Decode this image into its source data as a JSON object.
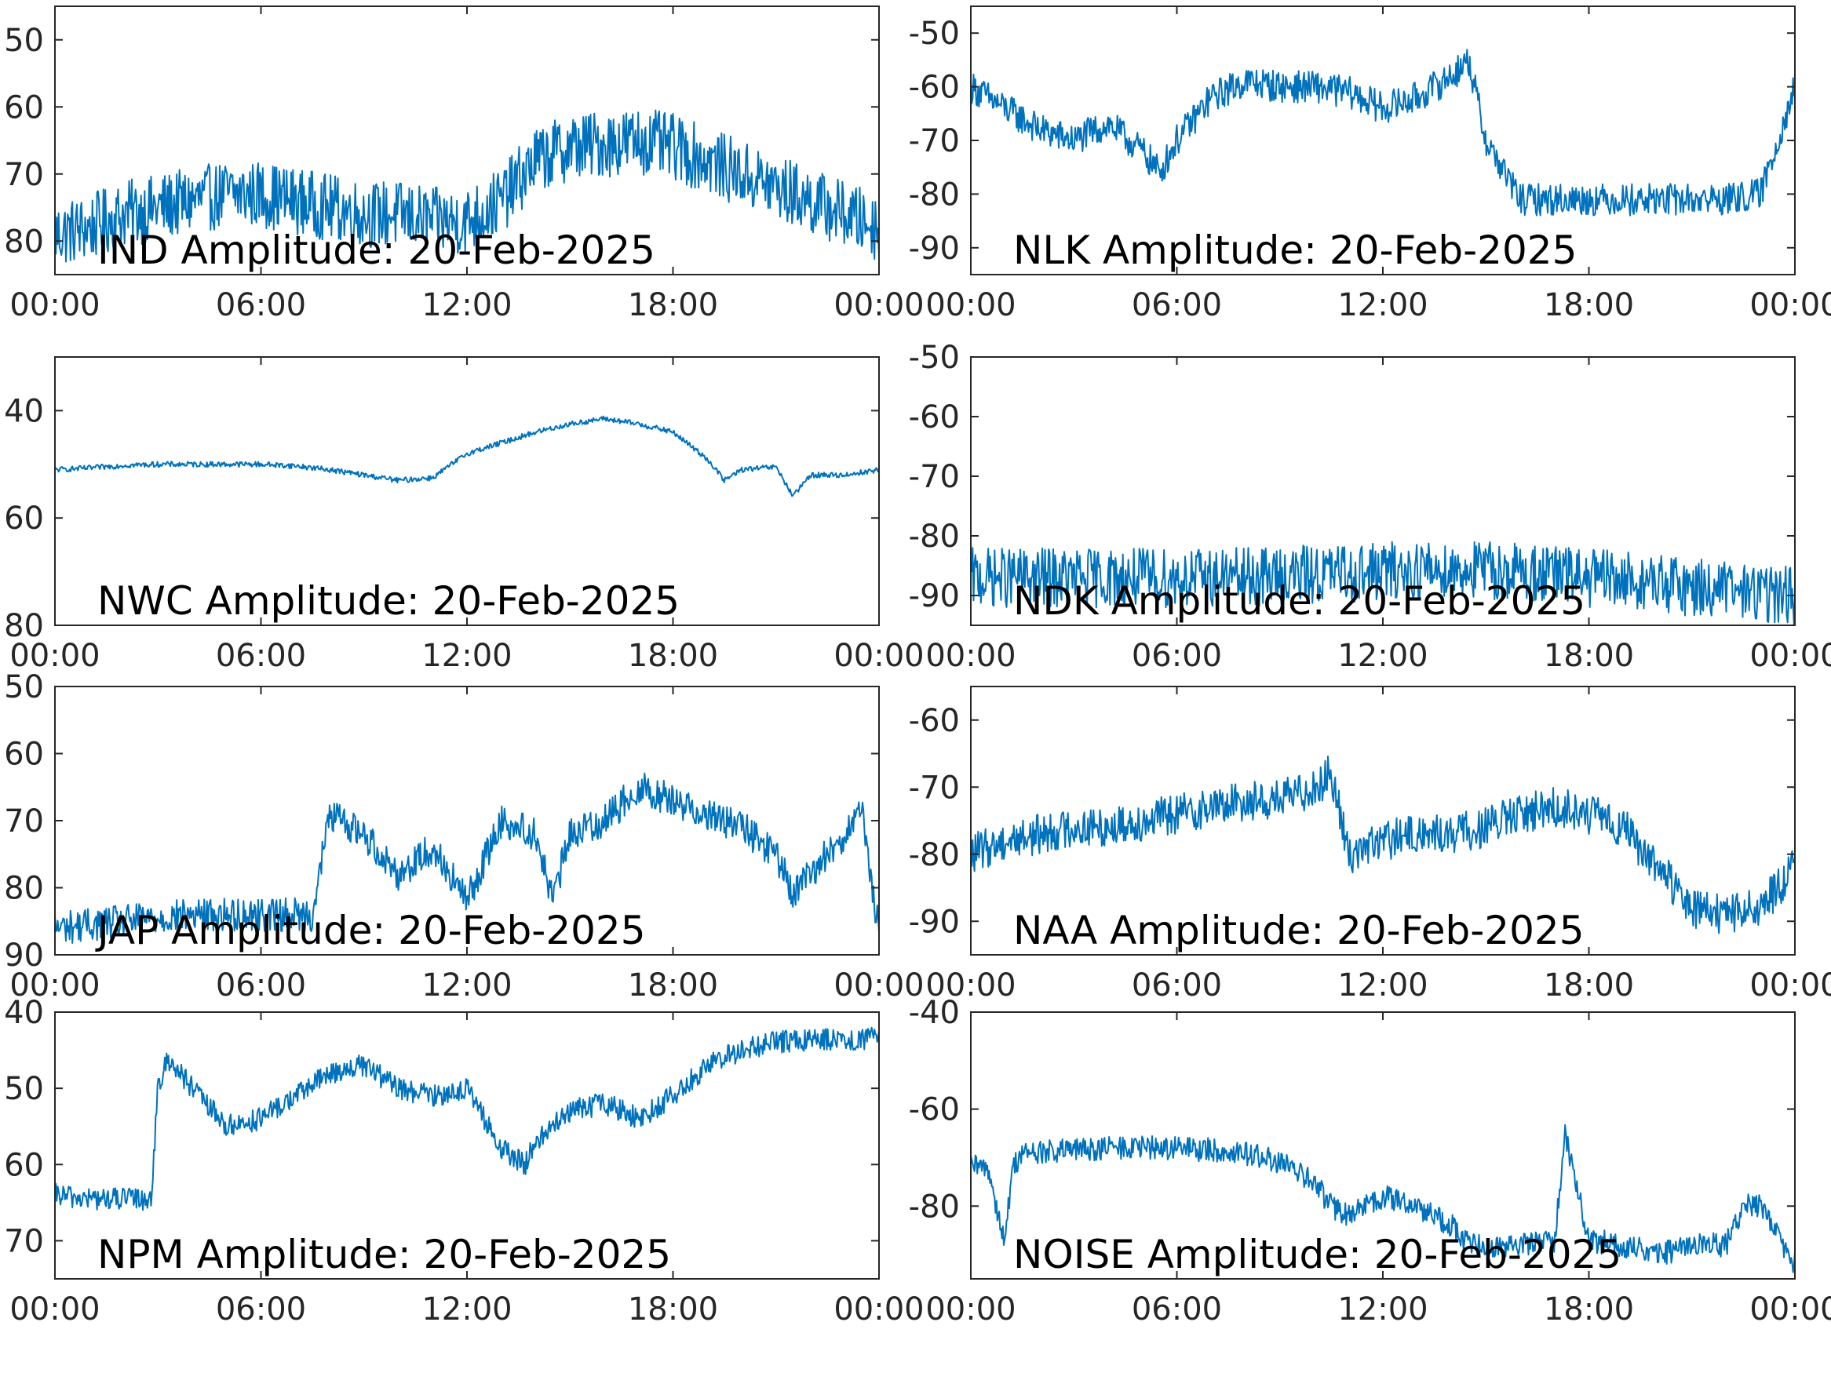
{
  "chart_data": [
    {
      "type": "line",
      "title": "IND Amplitude: 20-Feb-2025",
      "xticks": [
        "00:00",
        "06:00",
        "12:00",
        "18:00",
        "00:00"
      ],
      "yticks": [
        -50,
        -60,
        -70,
        -80
      ],
      "ytick_labels": [
        "50",
        "60",
        "70",
        "80"
      ],
      "ylim": [
        -85,
        -45
      ],
      "x_hours": [
        0,
        1,
        2,
        3,
        4,
        5,
        6,
        7,
        8,
        9,
        10,
        11,
        12,
        13,
        14,
        15,
        16,
        17,
        18,
        19,
        20,
        21,
        22,
        23,
        24
      ],
      "series": [
        {
          "color": "#0072BD",
          "y_mean": [
            -79,
            -78,
            -76,
            -75,
            -74,
            -73,
            -73,
            -74,
            -75,
            -76,
            -76,
            -77,
            -77,
            -74,
            -68,
            -66,
            -65.5,
            -65,
            -66,
            -68,
            -70,
            -72,
            -74,
            -76,
            -78
          ],
          "noise": 5
        }
      ]
    },
    {
      "type": "line",
      "title": "NLK Amplitude: 20-Feb-2025",
      "xticks": [
        "00:00",
        "06:00",
        "12:00",
        "18:00",
        "00:00"
      ],
      "yticks": [
        -50,
        -60,
        -70,
        -80,
        -90
      ],
      "ytick_labels": [
        "-50",
        "-60",
        "-70",
        "-80",
        "-90"
      ],
      "ylim": [
        -95,
        -45
      ],
      "x_hours": [
        0,
        1,
        2,
        3,
        4,
        5,
        5.5,
        6,
        7,
        8,
        9,
        10,
        11,
        12,
        13,
        14,
        14.5,
        15,
        16,
        17,
        18,
        19,
        20,
        21,
        22,
        23,
        24
      ],
      "series": [
        {
          "color": "#0072BD",
          "y_mean": [
            -60,
            -64,
            -68,
            -70,
            -67,
            -72,
            -76,
            -70,
            -62,
            -59,
            -60,
            -60,
            -61,
            -64,
            -62,
            -58,
            -55,
            -70,
            -81,
            -81,
            -81,
            -81,
            -81,
            -81,
            -81,
            -80,
            -60
          ],
          "noise": 3
        }
      ]
    },
    {
      "type": "line",
      "title": "NWC Amplitude: 20-Feb-2025",
      "xticks": [
        "00:00",
        "06:00",
        "12:00",
        "18:00",
        "00:00"
      ],
      "yticks": [
        -40,
        -60,
        -80
      ],
      "ytick_labels": [
        "40",
        "60",
        "80"
      ],
      "ylim": [
        -80,
        -30
      ],
      "x_hours": [
        0,
        1,
        2,
        3,
        4,
        5,
        6,
        7,
        8,
        9,
        10,
        11,
        12,
        13,
        14,
        15,
        16,
        17,
        18,
        19,
        19.5,
        20,
        21,
        21.5,
        22,
        23,
        24
      ],
      "series": [
        {
          "color": "#0072BD",
          "y_mean": [
            -51,
            -50.7,
            -50.2,
            -50,
            -50,
            -50,
            -50,
            -50.3,
            -51,
            -52,
            -53,
            -52.5,
            -48,
            -46,
            -44,
            -42.5,
            -41.5,
            -42.5,
            -44,
            -49,
            -53,
            -51,
            -50.5,
            -56,
            -52,
            -52,
            -51
          ],
          "noise": 0.5
        }
      ]
    },
    {
      "type": "line",
      "title": "NDK Amplitude: 20-Feb-2025",
      "xticks": [
        "00:00",
        "06:00",
        "12:00",
        "18:00",
        "00:00"
      ],
      "yticks": [
        -50,
        -60,
        -70,
        -80,
        -90
      ],
      "ytick_labels": [
        "-50",
        "-60",
        "-70",
        "-80",
        "-90"
      ],
      "ylim": [
        -95,
        -50
      ],
      "x_hours": [
        0,
        2,
        4,
        6,
        8,
        10,
        12,
        14,
        16,
        18,
        20,
        22,
        24
      ],
      "series": [
        {
          "color": "#0072BD",
          "y_mean": [
            -87,
            -87,
            -87,
            -87,
            -87,
            -86.5,
            -86,
            -85.5,
            -86,
            -87,
            -88,
            -89,
            -90
          ],
          "noise": 5
        }
      ]
    },
    {
      "type": "line",
      "title": "JAP Amplitude: 20-Feb-2025",
      "xticks": [
        "00:00",
        "06:00",
        "12:00",
        "18:00",
        "00:00"
      ],
      "yticks": [
        -50,
        -60,
        -70,
        -80,
        -90
      ],
      "ytick_labels": [
        "50",
        "60",
        "70",
        "80",
        "90"
      ],
      "ylim": [
        -90,
        -50
      ],
      "x_hours": [
        0,
        2,
        4,
        6,
        7.5,
        8,
        9,
        10,
        11,
        12,
        13,
        14,
        14.5,
        15,
        16,
        17,
        18,
        19,
        20,
        21,
        21.5,
        22,
        23,
        23.5,
        24
      ],
      "series": [
        {
          "color": "#0072BD",
          "y_mean": [
            -86,
            -85,
            -84,
            -84,
            -84,
            -69,
            -72,
            -78,
            -74,
            -82,
            -70,
            -72,
            -82,
            -72,
            -70,
            -65,
            -67,
            -69,
            -71,
            -75,
            -81,
            -78,
            -72,
            -69,
            -87
          ],
          "noise": 2.5
        }
      ]
    },
    {
      "type": "line",
      "title": "NAA Amplitude: 20-Feb-2025",
      "xticks": [
        "00:00",
        "06:00",
        "12:00",
        "18:00",
        "00:00"
      ],
      "yticks": [
        -60,
        -70,
        -80,
        -90
      ],
      "ytick_labels": [
        "-60",
        "-70",
        "-80",
        "-90"
      ],
      "ylim": [
        -95,
        -55
      ],
      "x_hours": [
        0,
        1,
        2,
        3,
        4,
        5,
        6,
        7,
        8,
        9,
        10,
        10.5,
        11,
        12,
        13,
        14,
        15,
        16,
        17,
        18,
        19,
        20,
        21,
        22,
        23,
        24
      ],
      "series": [
        {
          "color": "#0072BD",
          "y_mean": [
            -80,
            -78,
            -77,
            -76,
            -76,
            -75,
            -74,
            -73,
            -72,
            -72,
            -70,
            -68,
            -80,
            -78,
            -77,
            -77,
            -76,
            -74,
            -73,
            -74,
            -76,
            -82,
            -88,
            -89,
            -88,
            -82
          ],
          "noise": 3
        }
      ]
    },
    {
      "type": "line",
      "title": "NPM Amplitude: 20-Feb-2025",
      "xticks": [
        "00:00",
        "06:00",
        "12:00",
        "18:00",
        "00:00"
      ],
      "yticks": [
        -40,
        -50,
        -60,
        -70
      ],
      "ytick_labels": [
        "40",
        "50",
        "60",
        "70"
      ],
      "ylim": [
        -75,
        -40
      ],
      "x_hours": [
        0,
        1,
        2,
        2.8,
        3,
        3.3,
        4,
        5,
        6,
        7,
        8,
        9,
        10,
        11,
        12,
        13,
        13.7,
        14,
        15,
        16,
        17,
        18,
        19,
        20,
        21,
        22,
        23,
        24
      ],
      "series": [
        {
          "color": "#0072BD",
          "y_mean": [
            -64,
            -64.5,
            -64.5,
            -64.5,
            -50,
            -46,
            -50,
            -55,
            -54,
            -51,
            -48,
            -47,
            -50,
            -51,
            -50,
            -58,
            -60,
            -57,
            -53,
            -52,
            -54,
            -51,
            -47,
            -45,
            -44,
            -43.5,
            -43.5,
            -43.5
          ],
          "noise": 1.5
        }
      ]
    },
    {
      "type": "line",
      "title": "NOISE Amplitude: 20-Feb-2025",
      "xticks": [
        "00:00",
        "06:00",
        "12:00",
        "18:00",
        "00:00"
      ],
      "yticks": [
        -40,
        -60,
        -80
      ],
      "ytick_labels": [
        "-40",
        "-60",
        "-80"
      ],
      "ylim": [
        -95,
        -40
      ],
      "x_hours": [
        0,
        0.5,
        1,
        1.2,
        1.5,
        2,
        4,
        6,
        8,
        9,
        10,
        10.5,
        11,
        12,
        13,
        14,
        14.5,
        15,
        16,
        17,
        17.3,
        18,
        19,
        20,
        21,
        22,
        22.5,
        23,
        24
      ],
      "series": [
        {
          "color": "#0072BD",
          "y_mean": [
            -72,
            -72,
            -88,
            -72,
            -69,
            -69,
            -68,
            -68,
            -69,
            -71,
            -75,
            -80,
            -82,
            -78,
            -80,
            -84,
            -88,
            -88,
            -88,
            -87,
            -65,
            -87,
            -88,
            -90,
            -88,
            -88,
            -80,
            -80,
            -92
          ],
          "noise": 2.5
        }
      ]
    }
  ]
}
